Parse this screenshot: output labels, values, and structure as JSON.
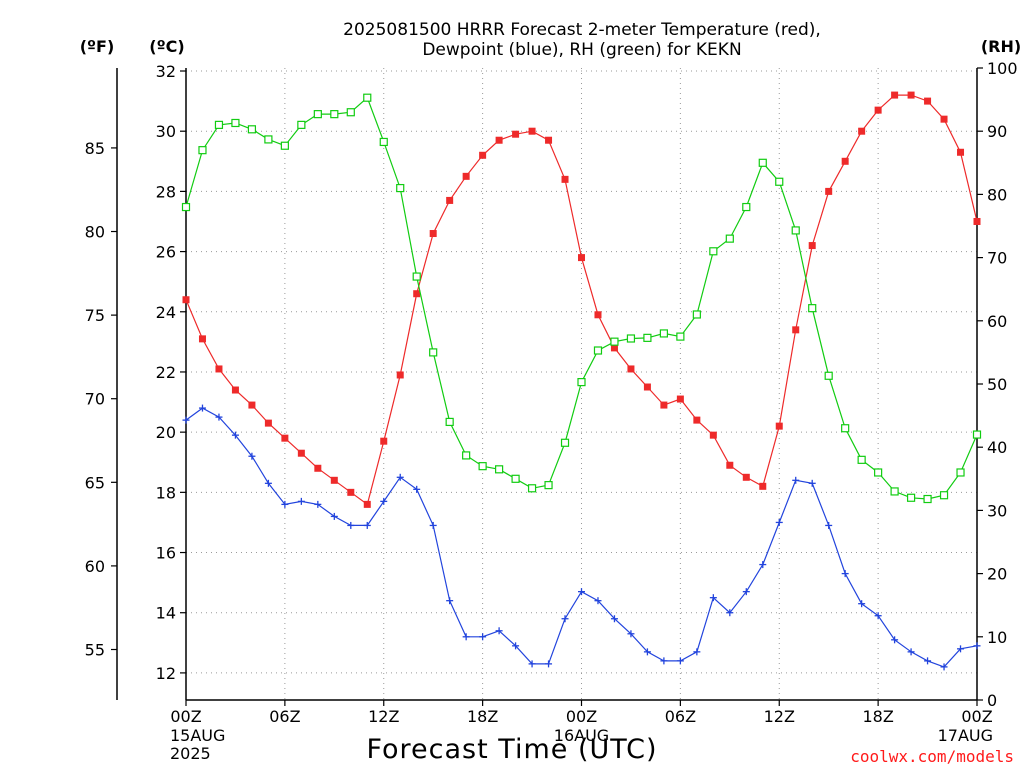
{
  "title": {
    "line1": "2025081500 HRRR Forecast 2-meter Temperature (red),",
    "line2": "Dewpoint (blue), RH (green) for KEKN"
  },
  "units": {
    "fahrenheit": "(ºF)",
    "celsius": "(ºC)",
    "rh": "(RH)"
  },
  "credit": "coolwx.com/models",
  "colors": {
    "temperature": "#ee2a2a",
    "dewpoint": "#2244dd",
    "rh": "#11cc11",
    "grid": "#9a9a9a"
  },
  "chart_data": {
    "type": "line",
    "xlabel": "Forecast Time (UTC)",
    "x_range_hours": [
      0,
      48
    ],
    "x_ticks": [
      {
        "hour": 0,
        "label": "00Z",
        "sub1": "15AUG",
        "sub2": "2025"
      },
      {
        "hour": 6,
        "label": "06Z",
        "sub1": "",
        "sub2": ""
      },
      {
        "hour": 12,
        "label": "12Z",
        "sub1": "",
        "sub2": ""
      },
      {
        "hour": 18,
        "label": "18Z",
        "sub1": "",
        "sub2": ""
      },
      {
        "hour": 24,
        "label": "00Z",
        "sub1": "16AUG",
        "sub2": ""
      },
      {
        "hour": 30,
        "label": "06Z",
        "sub1": "",
        "sub2": ""
      },
      {
        "hour": 36,
        "label": "12Z",
        "sub1": "",
        "sub2": ""
      },
      {
        "hour": 42,
        "label": "18Z",
        "sub1": "",
        "sub2": ""
      },
      {
        "hour": 48,
        "label": "00Z",
        "sub1": "17AUG",
        "sub2": ""
      }
    ],
    "y_celsius": {
      "ylim": [
        11.1,
        32.1
      ],
      "ticks": [
        12,
        14,
        16,
        18,
        20,
        22,
        24,
        26,
        28,
        30,
        32
      ]
    },
    "y_fahrenheit": {
      "ylim": [
        51.98,
        89.78
      ],
      "ticks": [
        55,
        60,
        65,
        70,
        75,
        80,
        85
      ]
    },
    "y_rh": {
      "ylim": [
        0,
        100
      ],
      "ticks": [
        0,
        10,
        20,
        30,
        40,
        50,
        60,
        70,
        80,
        90,
        100
      ]
    },
    "grid": true,
    "series": [
      {
        "key": "temperature",
        "axis": "celsius",
        "marker": "filled-square",
        "values": [
          24.4,
          23.1,
          22.1,
          21.4,
          20.9,
          20.3,
          19.8,
          19.3,
          18.8,
          18.4,
          18.0,
          17.6,
          19.7,
          21.9,
          24.6,
          26.6,
          27.7,
          28.5,
          29.2,
          29.7,
          29.9,
          30.0,
          29.7,
          28.4,
          25.8,
          23.9,
          22.8,
          22.1,
          21.5,
          20.9,
          21.1,
          20.4,
          19.9,
          18.9,
          18.5,
          18.2,
          20.2,
          23.4,
          26.2,
          28.0,
          29.0,
          30.0,
          30.7,
          31.2,
          31.2,
          31.0,
          30.4,
          29.3,
          27.0
        ]
      },
      {
        "key": "dewpoint",
        "axis": "celsius",
        "marker": "plus",
        "values": [
          20.4,
          20.8,
          20.5,
          19.9,
          19.2,
          18.3,
          17.6,
          17.7,
          17.6,
          17.2,
          16.9,
          16.9,
          17.7,
          18.5,
          18.1,
          16.9,
          14.4,
          13.2,
          13.2,
          13.4,
          12.9,
          12.3,
          12.3,
          13.8,
          14.7,
          14.4,
          13.8,
          13.3,
          12.7,
          12.4,
          12.4,
          12.7,
          14.5,
          14.0,
          14.7,
          15.6,
          17.0,
          18.4,
          18.3,
          16.9,
          15.3,
          14.3,
          13.9,
          13.1,
          12.7,
          12.4,
          12.2,
          12.8,
          12.9
        ]
      },
      {
        "key": "rh",
        "axis": "rh",
        "marker": "open-square",
        "values": [
          78.0,
          87.0,
          91.0,
          91.3,
          90.3,
          88.7,
          87.7,
          91.0,
          92.7,
          92.7,
          93.0,
          95.3,
          88.3,
          81.0,
          67.0,
          55.0,
          44.0,
          38.7,
          37.0,
          36.5,
          35.0,
          33.5,
          34.0,
          40.7,
          50.3,
          55.3,
          56.7,
          57.2,
          57.3,
          58.0,
          57.5,
          61.0,
          71.0,
          73.0,
          78.0,
          85.0,
          82.0,
          74.3,
          62.0,
          51.3,
          43.0,
          38.0,
          36.0,
          33.0,
          32.0,
          31.8,
          32.4,
          36.0,
          42.0
        ]
      }
    ]
  }
}
